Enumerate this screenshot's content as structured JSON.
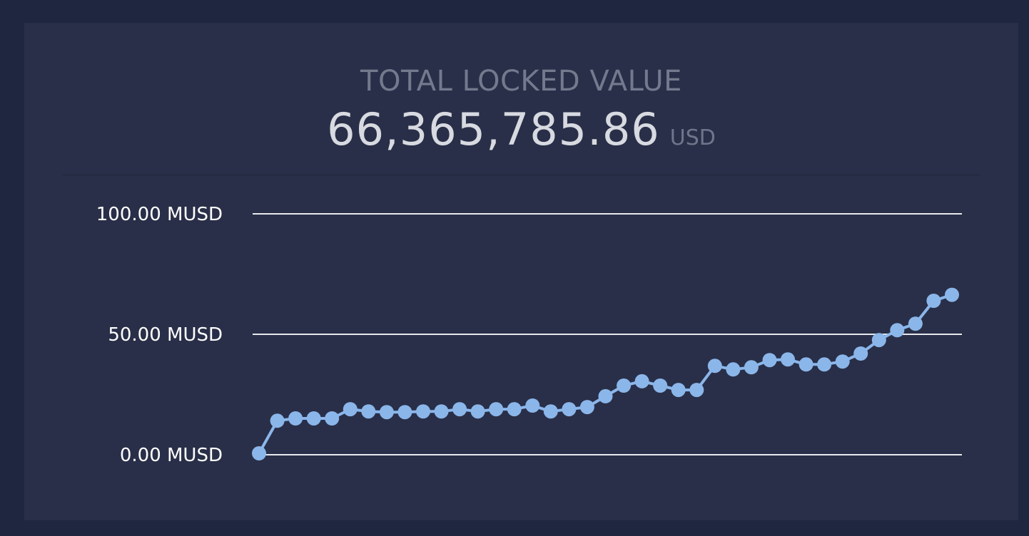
{
  "header": {
    "title": "TOTAL LOCKED VALUE",
    "value": "66,365,785.86",
    "unit": "USD"
  },
  "colors": {
    "background": "#1e2640",
    "card": "#292f48",
    "line": "#8bb6ea",
    "grid": "#e8e9ee"
  },
  "chart_data": {
    "type": "line",
    "title": "",
    "xlabel": "",
    "ylabel": "",
    "ylim": [
      0,
      100
    ],
    "yticks": [
      {
        "value": 0,
        "label": "0.00 MUSD"
      },
      {
        "value": 50,
        "label": "50.00 MUSD"
      },
      {
        "value": 100,
        "label": "100.00 MUSD"
      }
    ],
    "grid": true,
    "legend": "none",
    "series": [
      {
        "values": [
          0.6,
          14.1,
          15.1,
          15.1,
          15.1,
          18.9,
          18.0,
          17.7,
          17.7,
          18.0,
          18.0,
          18.9,
          18.0,
          18.9,
          18.9,
          20.4,
          18.0,
          18.9,
          19.8,
          24.3,
          28.7,
          30.5,
          28.7,
          26.9,
          26.9,
          36.9,
          35.4,
          36.3,
          39.3,
          39.6,
          37.5,
          37.5,
          38.7,
          42.0,
          47.6,
          51.7,
          54.4,
          63.9,
          66.4
        ]
      }
    ]
  }
}
